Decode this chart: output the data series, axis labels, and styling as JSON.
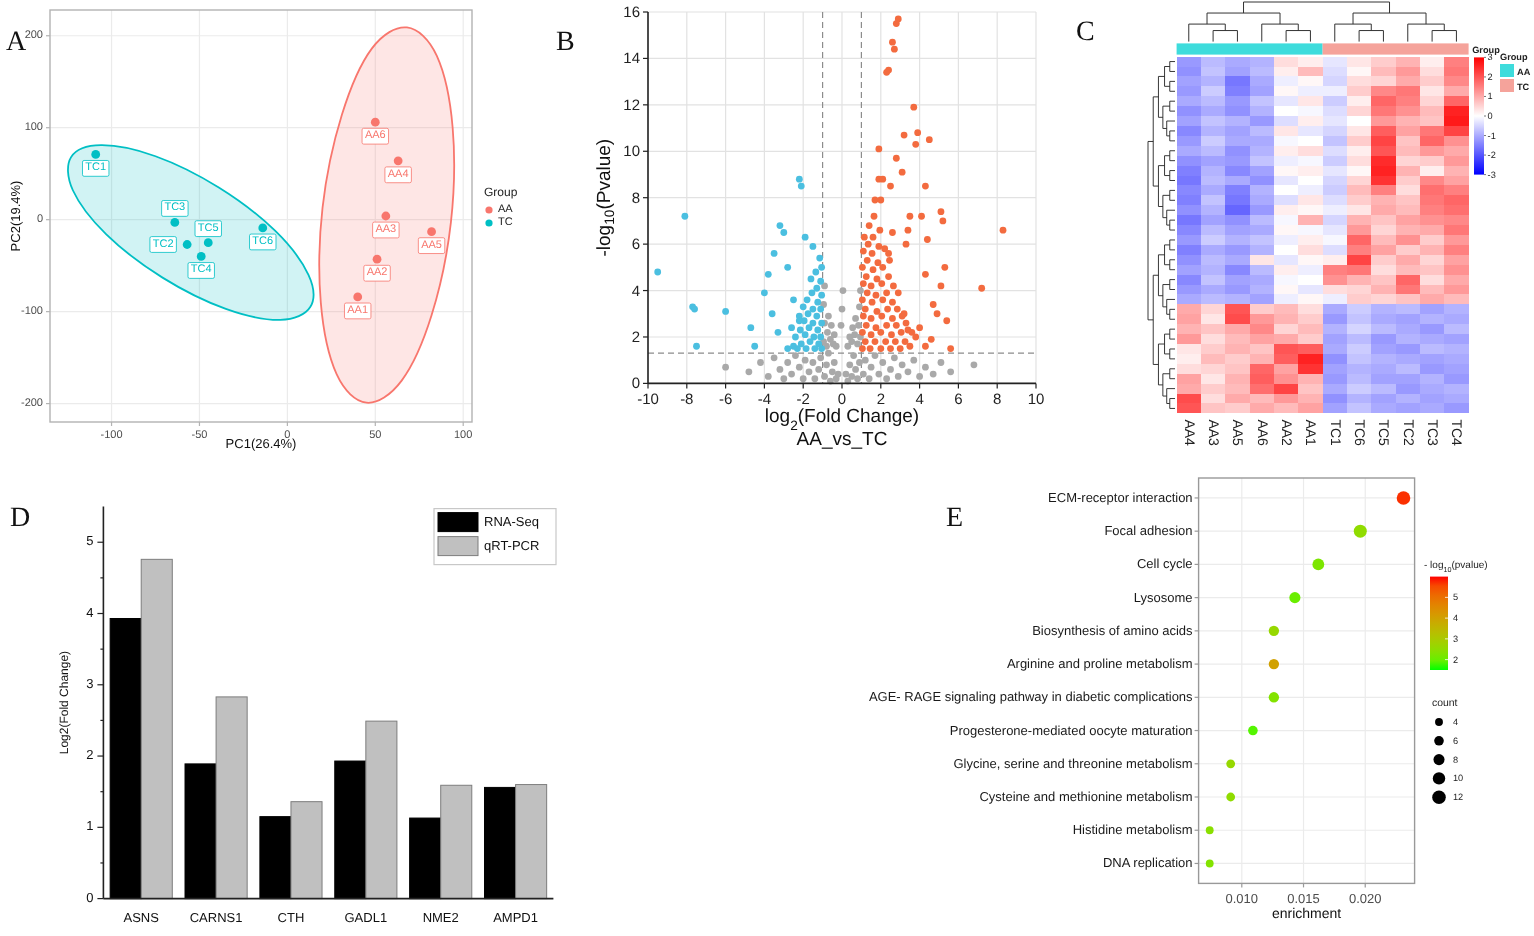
{
  "chart_data": [
    {
      "type": "scatter",
      "title": "A",
      "xlabel": "PC1(26.4%)",
      "ylabel": "PC2(19.4%)",
      "legend_title": "Group",
      "legend": "right",
      "marker": "circle",
      "grid": true,
      "xlim": [
        -135,
        105
      ],
      "ylim": [
        -220,
        228
      ],
      "xticks": [
        -100,
        -50,
        0,
        50,
        100
      ],
      "yticks": [
        -200,
        -100,
        0,
        100,
        200
      ],
      "series": [
        {
          "name": "AA",
          "color": "#f8766d",
          "x": [
            40,
            51,
            56,
            63,
            82,
            50
          ],
          "values": [
            -84,
            -43,
            4,
            64,
            -13,
            106
          ]
        },
        {
          "name": "TC",
          "color": "#00bfc4",
          "x": [
            -109,
            -57,
            -64,
            -49,
            -45,
            -14
          ],
          "values": [
            71,
            -27,
            -3,
            -40,
            -25,
            -9
          ]
        },
        {
          "type": "area",
          "marker": "none",
          "color": "#f8766d",
          "x": [
            68,
            85,
            94,
            93,
            82,
            65,
            45,
            28,
            19,
            20,
            31,
            48
          ],
          "values": [
            209,
            178,
            100,
            -3,
            -104,
            -175,
            -199,
            -168,
            -90,
            13,
            114,
            186
          ]
        },
        {
          "type": "area",
          "marker": "none",
          "color": "#00bfc4",
          "x": [
            13,
            -4,
            -35,
            -71,
            -103,
            -122,
            -123,
            -106,
            -75,
            -39,
            -7,
            12
          ],
          "values": [
            -95,
            -109,
            -97,
            -63,
            -16,
            32,
            68,
            81,
            69,
            35,
            -12,
            -60
          ]
        }
      ],
      "annotations": [
        {
          "text": "TC1",
          "x": -109,
          "y": 71
        },
        {
          "text": "TC2",
          "x": -57,
          "y": -27
        },
        {
          "text": "TC3",
          "x": -64,
          "y": -3
        },
        {
          "text": "TC4",
          "x": -49,
          "y": -40
        },
        {
          "text": "TC5",
          "x": -45,
          "y": -25
        },
        {
          "text": "TC6",
          "x": -14,
          "y": -9
        },
        {
          "text": "AA1",
          "x": 40,
          "y": -84
        },
        {
          "text": "AA2",
          "x": 51,
          "y": -43
        },
        {
          "text": "AA3",
          "x": 56,
          "y": 4
        },
        {
          "text": "AA4",
          "x": 63,
          "y": 64
        },
        {
          "text": "AA5",
          "x": 82,
          "y": -13
        },
        {
          "text": "AA6",
          "x": 50,
          "y": 106
        }
      ]
    },
    {
      "type": "scatter",
      "title": "B",
      "xlabel": "log$_{2}$(Fold Change)",
      "ylabel": "-log$_{10}$(Pvalue)",
      "marker": "circle",
      "grid": true,
      "xlim": [
        -10,
        10
      ],
      "ylim": [
        0,
        16
      ],
      "xticks": [
        -10,
        -8,
        -6,
        -4,
        -2,
        0,
        2,
        4,
        6,
        8,
        10
      ],
      "yticks": [
        0,
        2,
        4,
        6,
        8,
        10,
        12,
        14,
        16
      ],
      "ref_lines": [
        {
          "axis": "x",
          "value": -1,
          "line_style": "dashed",
          "color": "#8c8c8c"
        },
        {
          "axis": "x",
          "value": 1,
          "line_style": "dashed",
          "color": "#8c8c8c"
        },
        {
          "axis": "y",
          "value": 1.3,
          "line_style": "dashed",
          "color": "#8c8c8c"
        }
      ],
      "annotations": [
        "AA_vs_TC"
      ],
      "series": [
        {
          "color": "#a9a9a9",
          "x": [
            -6.0,
            -4.8,
            -4.2,
            -3.8,
            -3.5,
            -3.2,
            -3.0,
            -2.8,
            -2.6,
            -2.4,
            -2.2,
            -2.0,
            -1.9,
            -1.7,
            -1.5,
            -1.4,
            -1.2,
            -1.1,
            -0.9,
            -0.8,
            -0.7,
            -0.6,
            -0.5,
            -0.4,
            -0.3,
            -0.2,
            0.2,
            0.3,
            0.4,
            0.5,
            0.6,
            0.7,
            0.8,
            0.9,
            1.1,
            1.2,
            1.4,
            1.5,
            1.7,
            1.9,
            2.1,
            2.3,
            2.5,
            2.7,
            2.9,
            3.1,
            3.4,
            3.7,
            4.0,
            4.3,
            4.7,
            5.1,
            5.6,
            6.8,
            -0.95,
            -0.9,
            -0.95,
            -0.9,
            -0.8,
            -0.75,
            -0.7,
            -0.6,
            -0.55,
            -0.45,
            -0.4,
            -0.3,
            -0.05,
            0.0,
            0.05,
            0.3,
            0.4,
            0.5,
            0.55,
            0.65,
            0.7,
            0.8,
            0.85,
            0.9,
            0.95,
            0.95
          ],
          "values": [
            0.7,
            0.5,
            0.9,
            0.3,
            1.1,
            0.6,
            0.2,
            0.9,
            0.4,
            1.2,
            0.7,
            0.2,
            1.0,
            0.5,
            0.9,
            0.2,
            0.6,
            1.1,
            0.3,
            0.8,
            1.3,
            0.1,
            0.5,
            0.9,
            0.2,
            0.4,
            0.4,
            0.1,
            0.8,
            0.3,
            1.2,
            0.6,
            0.2,
            0.9,
            0.4,
            1.0,
            0.2,
            0.7,
            1.2,
            0.4,
            0.9,
            0.2,
            0.6,
            1.1,
            0.3,
            0.8,
            0.5,
            1.0,
            0.3,
            0.7,
            0.4,
            0.9,
            0.5,
            0.8,
            1.8,
            2.6,
            3.4,
            4.2,
            1.6,
            2.2,
            2.9,
            1.9,
            2.5,
            1.7,
            2.1,
            1.6,
            2.5,
            3.2,
            4.0,
            1.6,
            2.0,
            1.8,
            2.4,
            2.1,
            2.8,
            1.7,
            2.5,
            3.3,
            4.0,
            2.0
          ]
        },
        {
          "color": "#4bbfe0",
          "x": [
            -1.05,
            -1.1,
            -1.05,
            -1.1,
            -1.05,
            -1.1,
            -1.05,
            -1.15,
            -1.2,
            -1.25,
            -1.3,
            -1.25,
            -1.3,
            -1.35,
            -1.4,
            -1.45,
            -1.5,
            -1.5,
            -1.55,
            -1.6,
            -1.65,
            -1.7,
            -1.75,
            -1.8,
            -1.85,
            -1.9,
            -1.95,
            -2.0,
            -2.1,
            -2.15,
            -2.2,
            -2.3,
            -2.4,
            -2.5,
            -2.6,
            -2.8,
            -9.5,
            -8.1,
            -7.7,
            -7.6,
            -7.5,
            -6.0,
            -4.7,
            -4.5,
            -4.0,
            -3.8,
            -3.5,
            -3.2,
            -3.0,
            -2.2,
            -2.1,
            -2.8,
            -3.6,
            -3.3,
            -2.5,
            -1.9,
            -1.5,
            -2.2
          ],
          "values": [
            1.5,
            2.0,
            2.6,
            3.2,
            3.8,
            4.4,
            5.0,
            5.4,
            1.7,
            2.3,
            2.9,
            3.5,
            4.1,
            4.8,
            1.5,
            2.0,
            2.6,
            3.2,
            3.9,
            4.5,
            1.8,
            2.4,
            3.0,
            3.6,
            1.5,
            2.1,
            2.7,
            3.3,
            1.7,
            2.3,
            2.9,
            1.5,
            2.0,
            1.6,
            2.4,
            1.5,
            4.8,
            7.2,
            3.3,
            3.2,
            1.6,
            3.1,
            2.4,
            1.6,
            3.9,
            4.7,
            5.6,
            6.8,
            6.5,
            8.8,
            8.5,
            5.0,
            3.0,
            2.2,
            3.6,
            6.3,
            5.9,
            2.7
          ]
        },
        {
          "color": "#f36b3f",
          "x": [
            1.05,
            1.05,
            1.1,
            1.05,
            1.1,
            1.05,
            1.1,
            1.15,
            1.2,
            1.25,
            1.2,
            1.3,
            1.25,
            1.3,
            1.35,
            1.4,
            1.45,
            1.5,
            1.5,
            1.55,
            1.5,
            1.6,
            1.55,
            1.6,
            1.65,
            1.7,
            1.75,
            1.8,
            1.75,
            1.8,
            1.85,
            1.9,
            1.95,
            2.0,
            2.0,
            2.05,
            2.1,
            2.05,
            2.1,
            2.2,
            2.25,
            2.3,
            2.35,
            2.3,
            2.4,
            2.45,
            2.5,
            2.55,
            2.6,
            2.6,
            2.65,
            2.75,
            2.8,
            2.85,
            2.9,
            3.0,
            3.05,
            3.1,
            3.25,
            3.3,
            3.5,
            3.6,
            2.9,
            2.8,
            2.6,
            2.7,
            2.4,
            2.3,
            3.7,
            1.9,
            3.2,
            3.8,
            3.9,
            4.5,
            2.8,
            3.1,
            4.3,
            1.9,
            2.1,
            2.5,
            1.7,
            2.0,
            3.5,
            4.1,
            5.1,
            5.2,
            8.3,
            2.6,
            3.4,
            3.3,
            4.4,
            2.4,
            5.3,
            7.2,
            4.3,
            5.1,
            4.7,
            4.9,
            3.2,
            5.4,
            4.0,
            3.4,
            4.6,
            3.8,
            5.6,
            4.3
          ],
          "values": [
            1.5,
            2.2,
            2.9,
            3.6,
            4.3,
            5.0,
            5.7,
            6.3,
            1.8,
            2.5,
            3.2,
            3.9,
            4.6,
            5.3,
            6.0,
            6.8,
            1.5,
            2.1,
            2.8,
            3.5,
            4.2,
            4.9,
            5.6,
            6.3,
            7.2,
            1.8,
            2.4,
            3.1,
            3.8,
            4.5,
            5.2,
            5.9,
            6.6,
            1.5,
            2.2,
            2.9,
            3.6,
            4.3,
            5.0,
            5.8,
            1.8,
            2.5,
            3.2,
            3.9,
            4.6,
            5.3,
            1.5,
            2.1,
            2.8,
            3.5,
            4.2,
            1.8,
            2.5,
            3.2,
            3.9,
            1.5,
            2.2,
            2.9,
            1.8,
            2.6,
            1.6,
            2.2,
            15.7,
            15.5,
            14.7,
            14.4,
            13.5,
            13.4,
            11.9,
            10.1,
            10.7,
            10.3,
            10.8,
            10.5,
            9.7,
            9.1,
            8.5,
            8.8,
            8.8,
            8.5,
            7.9,
            7.9,
            7.2,
            7.2,
            7.4,
            7.0,
            6.6,
            6.5,
            6.6,
            6.0,
            6.2,
            5.6,
            5.0,
            4.1,
            4.7,
            4.2,
            3.4,
            3.0,
            3.0,
            2.7,
            2.4,
            2.3,
            1.9,
            2.0,
            1.5,
            1.6
          ]
        }
      ]
    },
    {
      "type": "heatmap",
      "title": "C",
      "legend_title": "Group",
      "annotations": [
        "Group",
        "AA",
        "TC"
      ],
      "categories": [
        "AA4",
        "AA3",
        "AA5",
        "AA6",
        "AA2",
        "AA1",
        "TC1",
        "TC6",
        "TC5",
        "TC2",
        "TC3",
        "TC4"
      ],
      "y_categories": [
        null,
        null,
        null,
        null,
        null,
        null,
        null,
        null,
        null,
        null,
        null,
        null,
        null,
        null,
        null,
        null,
        null,
        null,
        null,
        null,
        null,
        null,
        null,
        null,
        null,
        null,
        null,
        null,
        null,
        null,
        null,
        null,
        null,
        null,
        null,
        null
      ],
      "clim": [
        -3,
        3
      ],
      "cticks": [
        -3,
        -2,
        -1,
        0,
        1,
        2,
        3
      ],
      "cells": [
        [
          -1.2,
          -0.8,
          -1.0,
          -0.9,
          0.4,
          0.2,
          -0.3,
          0.3,
          0.6,
          0.9,
          0.2,
          1.5
        ],
        [
          -1.3,
          -0.7,
          -1.1,
          -0.8,
          0.2,
          0.8,
          -0.4,
          0.1,
          0.8,
          1.2,
          0.4,
          1.6
        ],
        [
          -1.1,
          -0.9,
          -1.6,
          -1.0,
          -0.2,
          0.1,
          -0.5,
          0.4,
          0.5,
          1.0,
          0.6,
          1.4
        ],
        [
          -1.2,
          -0.6,
          -1.5,
          -1.1,
          0.1,
          -0.2,
          -0.2,
          0.6,
          1.4,
          1.6,
          0.3,
          1.0
        ],
        [
          -1.0,
          -0.8,
          -1.2,
          -0.7,
          -0.3,
          0.3,
          -0.6,
          0.2,
          1.8,
          1.5,
          0.5,
          1.8
        ],
        [
          -1.3,
          -1.0,
          -1.3,
          -0.9,
          0.0,
          -0.1,
          -0.4,
          0.5,
          1.6,
          1.3,
          0.8,
          2.6
        ],
        [
          -1.1,
          -0.7,
          -0.9,
          -1.2,
          -0.4,
          0.2,
          -0.3,
          0.0,
          1.2,
          0.9,
          0.7,
          2.7
        ],
        [
          -1.4,
          -0.9,
          -1.1,
          -0.8,
          0.3,
          -0.3,
          -0.5,
          0.3,
          1.9,
          1.1,
          1.6,
          2.2
        ],
        [
          -1.2,
          -0.6,
          -1.0,
          -1.0,
          -0.1,
          0.0,
          -0.7,
          0.6,
          2.2,
          0.7,
          1.8,
          1.3
        ],
        [
          -1.0,
          -0.8,
          -1.3,
          -0.9,
          0.2,
          0.4,
          -0.4,
          0.2,
          2.0,
          0.8,
          1.2,
          1.0
        ],
        [
          -1.3,
          -1.1,
          -1.2,
          -0.7,
          -0.2,
          -0.1,
          -0.6,
          0.4,
          2.5,
          0.5,
          0.6,
          1.2
        ],
        [
          -1.5,
          -0.9,
          -1.4,
          -1.1,
          0.1,
          0.2,
          -0.3,
          0.1,
          2.6,
          0.9,
          0.2,
          0.9
        ],
        [
          -1.6,
          -0.8,
          -1.0,
          -1.3,
          -0.3,
          0.0,
          -0.5,
          0.5,
          2.4,
          0.6,
          1.4,
          1.1
        ],
        [
          -1.4,
          -1.0,
          -1.5,
          -0.9,
          0.0,
          -0.2,
          -0.6,
          0.8,
          1.5,
          0.4,
          1.7,
          1.5
        ],
        [
          -1.5,
          -0.7,
          -1.6,
          -1.0,
          -0.4,
          0.3,
          -0.4,
          0.6,
          0.9,
          0.7,
          1.6,
          1.8
        ],
        [
          -1.3,
          -0.9,
          -1.8,
          -1.2,
          0.2,
          0.1,
          -0.2,
          0.3,
          1.0,
          0.8,
          1.5,
          1.7
        ],
        [
          -1.6,
          -1.1,
          -1.3,
          -0.8,
          -0.1,
          0.9,
          -0.5,
          0.9,
          0.7,
          1.1,
          1.3,
          1.4
        ],
        [
          -1.4,
          -0.8,
          -1.1,
          -1.0,
          0.1,
          -0.1,
          -0.3,
          1.2,
          0.5,
          0.9,
          1.0,
          1.6
        ],
        [
          -1.2,
          -0.6,
          -0.9,
          -0.7,
          -0.2,
          0.2,
          -0.1,
          1.8,
          0.8,
          1.3,
          0.6,
          1.2
        ],
        [
          -1.5,
          -1.0,
          -1.2,
          -0.9,
          0.0,
          0.4,
          -0.4,
          1.5,
          1.1,
          0.6,
          0.9,
          1.5
        ],
        [
          -1.3,
          -0.8,
          -1.0,
          0.3,
          -0.3,
          0.1,
          0.2,
          2.2,
          0.6,
          1.0,
          0.5,
          1.1
        ],
        [
          -1.1,
          -0.9,
          -1.4,
          -0.8,
          0.2,
          -0.2,
          1.5,
          1.6,
          0.4,
          0.8,
          0.7,
          1.3
        ],
        [
          -1.4,
          -0.7,
          -1.1,
          -1.0,
          -0.1,
          0.0,
          1.3,
          0.9,
          0.7,
          1.8,
          0.4,
          1.0
        ],
        [
          -1.2,
          -1.0,
          -1.2,
          -0.9,
          0.1,
          -0.3,
          0.4,
          0.5,
          0.9,
          1.6,
          0.8,
          1.2
        ],
        [
          -1.0,
          -0.8,
          -0.9,
          -1.1,
          -0.2,
          0.1,
          -0.2,
          0.6,
          0.5,
          0.7,
          1.0,
          0.8
        ],
        [
          1.0,
          0.5,
          2.0,
          0.6,
          0.8,
          0.4,
          -1.0,
          -0.6,
          -0.9,
          -0.8,
          -1.1,
          -0.9
        ],
        [
          1.1,
          0.3,
          2.1,
          1.2,
          0.9,
          0.6,
          -1.2,
          -0.7,
          -1.0,
          -1.1,
          -0.9,
          -1.0
        ],
        [
          0.9,
          0.7,
          1.0,
          1.4,
          0.5,
          0.8,
          -0.9,
          -0.5,
          -0.8,
          -1.0,
          -1.2,
          -0.8
        ],
        [
          1.2,
          0.4,
          0.8,
          1.1,
          1.0,
          0.6,
          -1.1,
          -0.8,
          -1.2,
          -0.9,
          -1.0,
          -1.1
        ],
        [
          0.3,
          0.6,
          0.9,
          0.7,
          2.0,
          1.9,
          -1.0,
          -0.6,
          -1.1,
          -1.2,
          -0.8,
          -0.9
        ],
        [
          0.2,
          0.8,
          0.6,
          0.9,
          1.9,
          2.6,
          -1.3,
          -0.7,
          -0.9,
          -1.0,
          -1.1,
          -1.0
        ],
        [
          0.4,
          0.5,
          0.7,
          1.8,
          1.1,
          2.4,
          -1.1,
          -0.9,
          -1.0,
          -0.8,
          -1.2,
          -1.1
        ],
        [
          1.1,
          0.3,
          0.9,
          1.9,
          1.3,
          0.9,
          -1.2,
          -0.8,
          -1.1,
          -1.1,
          -0.9,
          -1.2
        ],
        [
          1.0,
          0.6,
          0.8,
          1.7,
          2.2,
          0.7,
          -1.0,
          -0.6,
          -0.8,
          -1.2,
          -1.0,
          -0.9
        ],
        [
          2.1,
          0.4,
          1.0,
          0.8,
          1.2,
          0.9,
          -1.3,
          -0.9,
          -1.1,
          -0.9,
          -1.1,
          -1.0
        ],
        [
          2.0,
          0.7,
          0.6,
          1.0,
          0.8,
          1.1,
          -1.1,
          -0.7,
          -1.0,
          -1.1,
          -1.0,
          -1.2
        ]
      ]
    },
    {
      "type": "bar",
      "title": "D",
      "ylabel": "Log2(Fold Change)",
      "legend": "top right",
      "categories": [
        "ASNS",
        "CARNS1",
        "CTH",
        "GADL1",
        "NME2",
        "AMPD1"
      ],
      "ylim": [
        0,
        5.5
      ],
      "yticks": [
        0,
        {
          "value": 0.5,
          "label": null
        },
        1,
        {
          "value": 1.5,
          "label": null
        },
        2,
        {
          "value": 2.5,
          "label": null
        },
        3,
        {
          "value": 3.5,
          "label": null
        },
        4,
        {
          "value": 4.5,
          "label": null
        },
        5
      ],
      "series": [
        {
          "name": "RNA-Seq",
          "color": "#000000",
          "values": [
            3.93,
            1.89,
            1.15,
            1.93,
            1.13,
            1.56
          ]
        },
        {
          "name": "qRT-PCR",
          "color": "#c0c0c0",
          "values": [
            4.76,
            2.83,
            1.36,
            2.49,
            1.59,
            1.6
          ]
        }
      ]
    },
    {
      "type": "bubble",
      "title": "E",
      "orientation": "horizontal",
      "xlabel": "enrichment",
      "legend_title": "count",
      "clabel": "- log$_{10}$(pvalue)",
      "grid": true,
      "marker": "circle",
      "categories": [
        "ECM-receptor interaction",
        "Focal adhesion",
        "Cell cycle",
        "Lysosome",
        "Biosynthesis of amino acids",
        "Arginine and proline metabolism",
        "AGE- RAGE signaling pathway in diabetic complications",
        "Progesterone-mediated oocyte maturation",
        "Glycine, serine and threonine metabolism",
        "Cysteine and methionine metabolism",
        "Histidine metabolism",
        "DNA replication"
      ],
      "values": [
        0.0231,
        0.0196,
        0.0162,
        0.0143,
        0.0126,
        0.0126,
        0.0126,
        0.0109,
        0.0091,
        0.0091,
        0.0074,
        0.0074
      ],
      "sizes": [
        12,
        11,
        9,
        8,
        7,
        7,
        7,
        6,
        5,
        5,
        4,
        4
      ],
      "size_legend": [
        4,
        6,
        8,
        10,
        12
      ],
      "cvalues": [
        5.8,
        2.5,
        2.2,
        2.0,
        2.6,
        4.0,
        2.3,
        1.8,
        2.6,
        2.5,
        2.4,
        2.3
      ],
      "clim": [
        1.5,
        6.0
      ],
      "cticks": [
        2,
        3,
        4,
        5
      ],
      "xlim": [
        0.0065,
        0.024
      ],
      "xticks": [
        {
          "value": 0.01,
          "label": "0.010"
        },
        {
          "value": 0.015,
          "label": "0.015"
        },
        {
          "value": 0.02,
          "label": "0.020"
        }
      ]
    }
  ]
}
